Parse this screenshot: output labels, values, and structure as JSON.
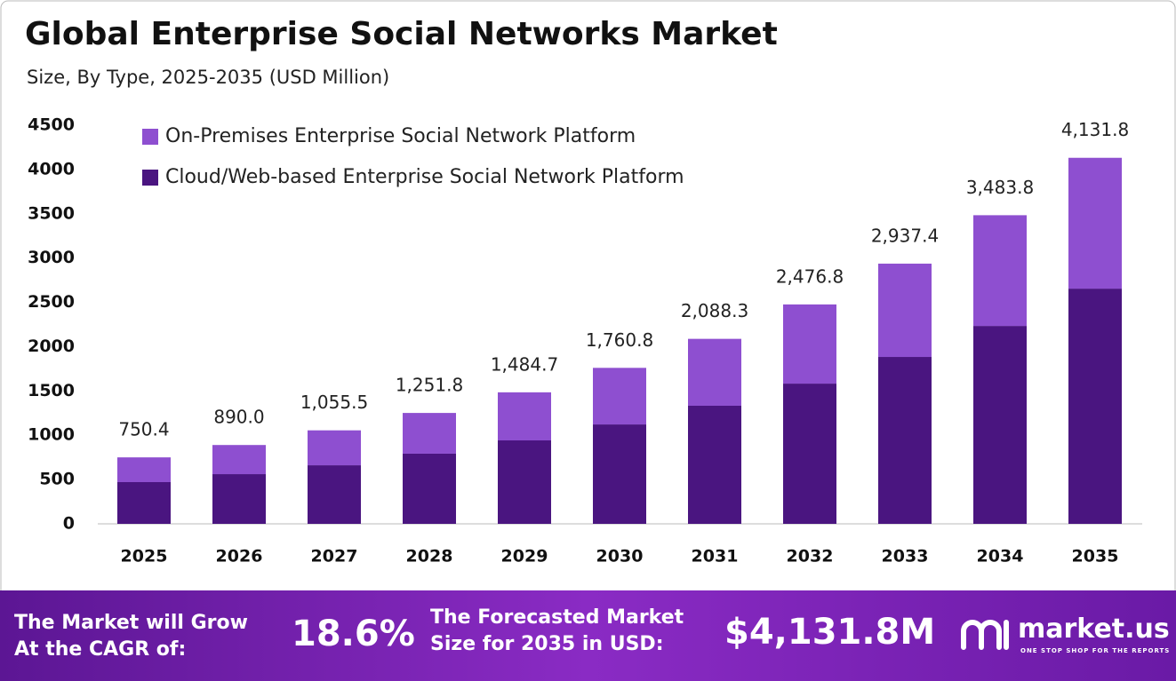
{
  "chart_data": {
    "type": "stacked-bar",
    "title": "Global Enterprise Social Networks Market",
    "subtitle": "Size, By Type, 2025-2035 (USD Million)",
    "categories": [
      "2025",
      "2026",
      "2027",
      "2028",
      "2029",
      "2030",
      "2031",
      "2032",
      "2033",
      "2034",
      "2035"
    ],
    "series": [
      {
        "name": "Cloud/Web-based Enterprise Social Network Platform",
        "color": "#4a1580",
        "values": [
          471,
          561,
          661,
          792,
          942,
          1122,
          1333,
          1583,
          1884,
          2234,
          2655
        ]
      },
      {
        "name": "On-Premises Enterprise Social Network Platform",
        "color": "#8e4fd0",
        "values": [
          279.4,
          329.0,
          394.5,
          459.8,
          542.7,
          638.8,
          755.3,
          893.8,
          1053.4,
          1249.8,
          1476.8
        ]
      }
    ],
    "totals": [
      750.4,
      890.0,
      1055.5,
      1251.8,
      1484.7,
      1760.8,
      2088.3,
      2476.8,
      2937.4,
      3483.8,
      4131.8
    ],
    "total_labels": [
      "750.4",
      "890.0",
      "1,055.5",
      "1,251.8",
      "1,484.7",
      "1,760.8",
      "2,088.3",
      "2,476.8",
      "2,937.4",
      "3,483.8",
      "4,131.8"
    ],
    "ylim": [
      0,
      4500
    ],
    "yticks": [
      0,
      500,
      1000,
      1500,
      2000,
      2500,
      3000,
      3500,
      4000,
      4500
    ],
    "grid": false
  },
  "footer": {
    "cagr_text": "The Market will Grow At the CAGR of:",
    "cagr_value": "18.6%",
    "forecast_text": "The Forecasted Market Size for 2035 in USD:",
    "forecast_value": "$4,131.8M",
    "brand": "market.us",
    "tagline": "ONE STOP SHOP FOR THE REPORTS"
  }
}
